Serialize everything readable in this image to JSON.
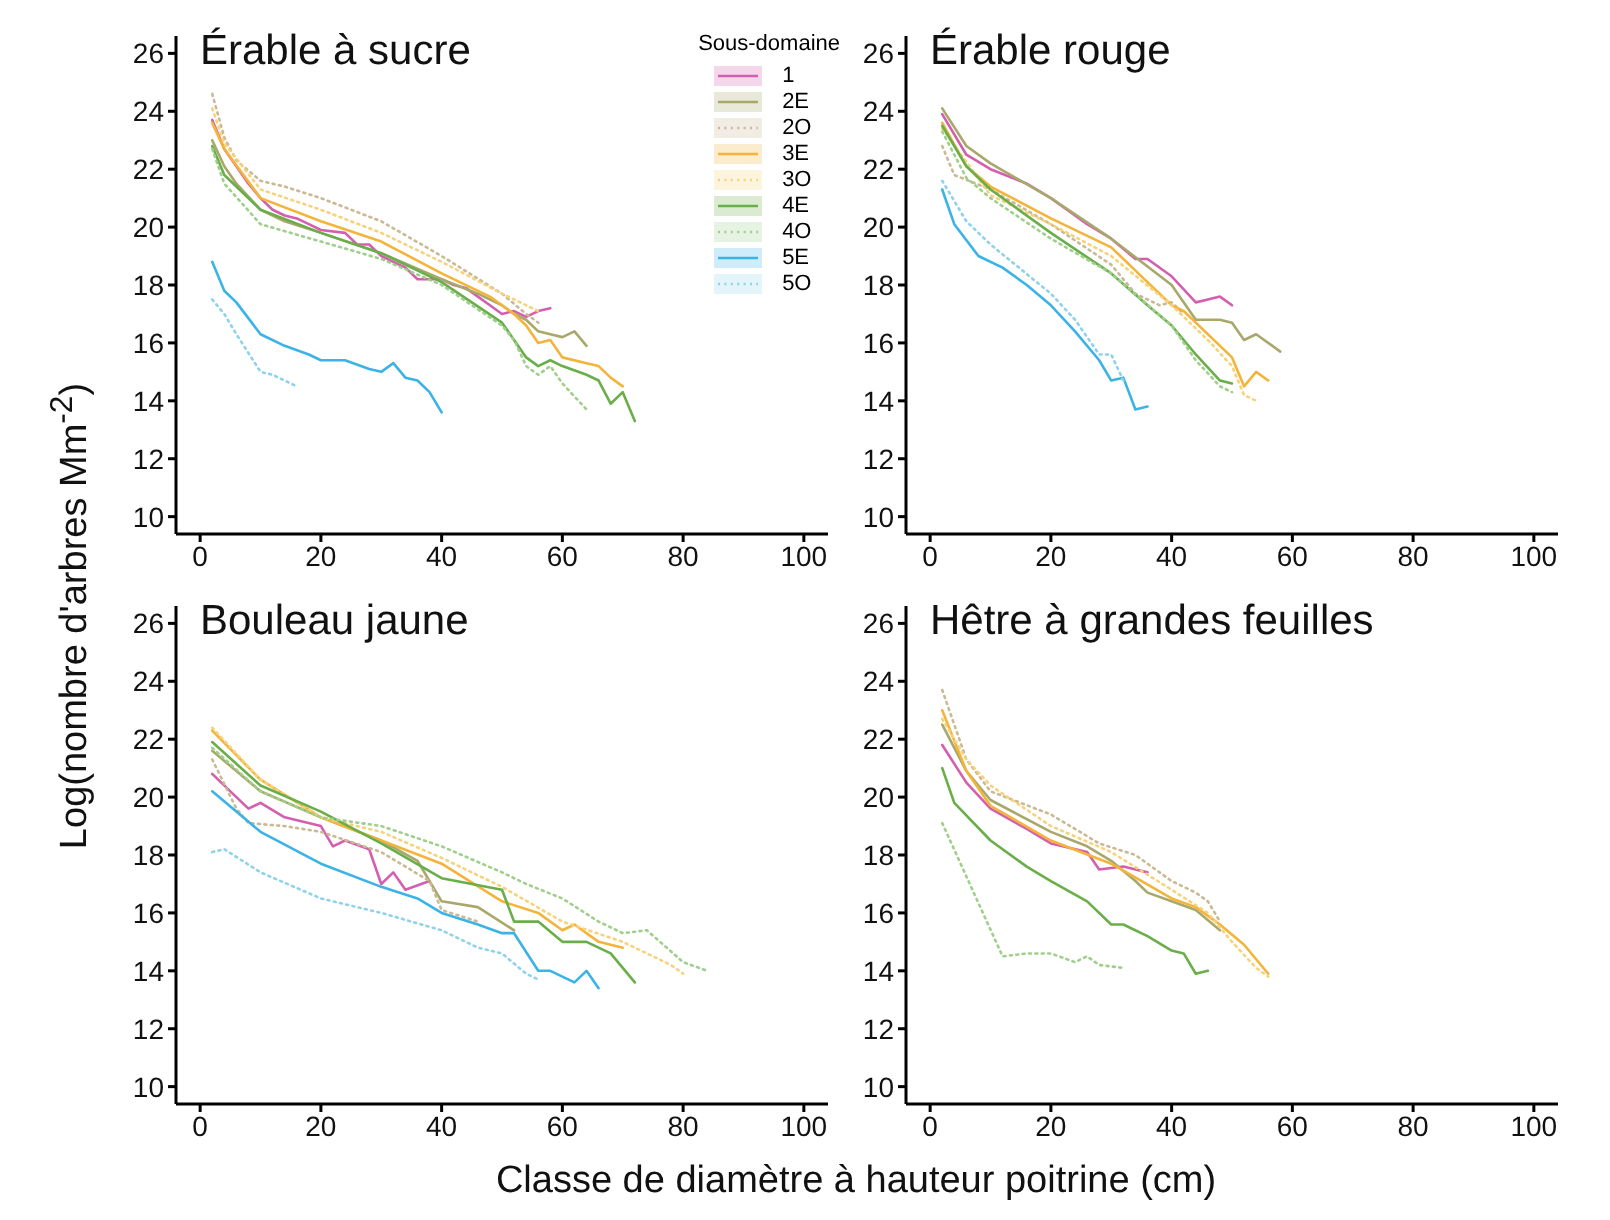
{
  "chart_data": [
    {
      "type": "line",
      "title": "Érable à sucre",
      "ylabel": "Log(nombre d'arbres Mm$^{-2}$)",
      "legend_title": "Sous-domaine",
      "legend": "top right",
      "xlim": [
        -4,
        104
      ],
      "ylim": [
        9.4,
        26.6
      ],
      "xticks": [
        0,
        20,
        40,
        60,
        80,
        100
      ],
      "yticks": [
        10,
        12,
        14,
        16,
        18,
        20,
        22,
        24,
        26
      ],
      "series": [
        {
          "name": "1",
          "color": "#d45fb0",
          "line_style": "solid",
          "x": [
            2,
            4,
            6,
            8,
            10,
            12,
            14,
            16,
            18,
            20,
            24,
            26,
            28,
            30,
            32,
            34,
            36,
            38,
            40,
            42,
            44,
            46,
            48,
            50,
            52,
            54,
            56,
            58
          ],
          "values": [
            23.7,
            22.7,
            22.1,
            21.5,
            21.0,
            20.6,
            20.4,
            20.3,
            20.1,
            19.9,
            19.8,
            19.4,
            19.4,
            19.0,
            18.8,
            18.6,
            18.2,
            18.2,
            18.2,
            18.0,
            17.9,
            17.6,
            17.3,
            17.0,
            17.1,
            16.9,
            17.1,
            17.2
          ]
        },
        {
          "name": "2E",
          "color": "#a9a86b",
          "line_style": "solid",
          "x": [
            2,
            4,
            6,
            10,
            14,
            20,
            30,
            40,
            46,
            50,
            52,
            54,
            56,
            58,
            60,
            62,
            64
          ],
          "values": [
            23.0,
            22.1,
            21.5,
            20.6,
            20.2,
            19.8,
            19.1,
            18.2,
            17.7,
            17.3,
            17.0,
            16.8,
            16.4,
            16.3,
            16.2,
            16.4,
            15.9
          ]
        },
        {
          "name": "2O",
          "color": "#cbb995",
          "line_style": "dotted",
          "x": [
            2,
            4,
            6,
            10,
            14,
            20,
            30,
            40,
            50,
            54,
            56
          ],
          "values": [
            24.6,
            23.1,
            22.3,
            21.6,
            21.4,
            21.0,
            20.2,
            19.0,
            17.7,
            17.0,
            16.7
          ]
        },
        {
          "name": "3E",
          "color": "#f4b43a",
          "line_style": "solid",
          "x": [
            2,
            4,
            10,
            20,
            30,
            40,
            48,
            52,
            54,
            56,
            58,
            60,
            64,
            66,
            68,
            70
          ],
          "values": [
            23.6,
            22.7,
            21.0,
            20.2,
            19.5,
            18.4,
            17.6,
            17.0,
            16.6,
            16.0,
            16.1,
            15.5,
            15.3,
            15.2,
            14.8,
            14.5
          ]
        },
        {
          "name": "3O",
          "color": "#f6d27c",
          "line_style": "dotted",
          "x": [
            2,
            4,
            10,
            20,
            30,
            40,
            50,
            54,
            56
          ],
          "values": [
            24.1,
            22.9,
            21.3,
            20.6,
            19.8,
            18.8,
            17.7,
            17.3,
            17.1
          ]
        },
        {
          "name": "4E",
          "color": "#6aae4a",
          "line_style": "solid",
          "x": [
            2,
            4,
            10,
            20,
            30,
            40,
            50,
            52,
            54,
            56,
            58,
            60,
            64,
            66,
            68,
            70,
            72
          ],
          "values": [
            22.8,
            21.8,
            20.6,
            19.8,
            19.1,
            18.1,
            16.7,
            16.1,
            15.5,
            15.2,
            15.4,
            15.2,
            14.9,
            14.7,
            13.9,
            14.3,
            13.3
          ]
        },
        {
          "name": "4O",
          "color": "#9fcf8a",
          "line_style": "dotted",
          "x": [
            2,
            4,
            10,
            20,
            30,
            40,
            50,
            52,
            54,
            56,
            58,
            60,
            64
          ],
          "values": [
            22.7,
            21.5,
            20.1,
            19.5,
            18.9,
            18.0,
            16.6,
            16.1,
            15.2,
            14.9,
            15.2,
            14.6,
            13.7
          ]
        },
        {
          "name": "5E",
          "color": "#3cb3e6",
          "line_style": "solid",
          "x": [
            2,
            4,
            6,
            10,
            14,
            18,
            20,
            24,
            28,
            30,
            32,
            34,
            36,
            38,
            40
          ],
          "values": [
            18.8,
            17.8,
            17.4,
            16.3,
            15.9,
            15.6,
            15.4,
            15.4,
            15.1,
            15.0,
            15.3,
            14.8,
            14.7,
            14.3,
            13.6
          ]
        },
        {
          "name": "5O",
          "color": "#8fd2ec",
          "line_style": "dotted",
          "x": [
            2,
            4,
            6,
            10,
            12,
            14,
            16
          ],
          "values": [
            17.5,
            17.0,
            16.3,
            15.0,
            14.9,
            14.7,
            14.5
          ]
        }
      ]
    },
    {
      "type": "line",
      "title": "Érable rouge",
      "xlim": [
        -4,
        104
      ],
      "ylim": [
        9.4,
        26.6
      ],
      "xticks": [
        0,
        20,
        40,
        60,
        80,
        100
      ],
      "yticks": [
        10,
        12,
        14,
        16,
        18,
        20,
        22,
        24,
        26
      ],
      "series": [
        {
          "color": "#d45fb0",
          "line_style": "solid",
          "x": [
            2,
            6,
            10,
            16,
            20,
            26,
            30,
            34,
            36,
            40,
            44,
            46,
            48,
            50
          ],
          "values": [
            23.9,
            22.5,
            22.0,
            21.5,
            21.0,
            20.1,
            19.6,
            18.9,
            18.9,
            18.3,
            17.4,
            17.5,
            17.6,
            17.3
          ]
        },
        {
          "color": "#a9a86b",
          "line_style": "solid",
          "x": [
            2,
            6,
            10,
            20,
            30,
            40,
            44,
            48,
            50,
            52,
            54,
            58
          ],
          "values": [
            24.1,
            22.8,
            22.2,
            21.0,
            19.6,
            18.0,
            16.8,
            16.8,
            16.7,
            16.1,
            16.3,
            15.7
          ]
        },
        {
          "color": "#cbb995",
          "line_style": "dotted",
          "x": [
            2,
            4,
            10,
            20,
            30,
            34,
            36,
            38,
            40,
            42
          ],
          "values": [
            22.8,
            21.8,
            21.3,
            20.1,
            18.7,
            17.7,
            17.5,
            17.3,
            17.4,
            17.0
          ]
        },
        {
          "color": "#f4b43a",
          "line_style": "solid",
          "x": [
            2,
            6,
            10,
            20,
            30,
            36,
            40,
            42,
            44,
            50,
            52,
            54,
            56
          ],
          "values": [
            23.6,
            22.1,
            21.4,
            20.3,
            19.3,
            18.1,
            17.3,
            17.1,
            16.7,
            15.5,
            14.5,
            15.0,
            14.7
          ]
        },
        {
          "color": "#f6d27c",
          "line_style": "dotted",
          "x": [
            2,
            10,
            20,
            30,
            40,
            46,
            50,
            52,
            54
          ],
          "values": [
            23.4,
            21.1,
            20.1,
            19.0,
            17.3,
            16.1,
            15.2,
            14.2,
            14.0
          ]
        },
        {
          "color": "#6aae4a",
          "line_style": "solid",
          "x": [
            2,
            6,
            10,
            20,
            30,
            36,
            40,
            44,
            48,
            50
          ],
          "values": [
            23.5,
            22.1,
            21.3,
            19.8,
            18.4,
            17.3,
            16.6,
            15.6,
            14.7,
            14.6
          ]
        },
        {
          "color": "#9fcf8a",
          "line_style": "dotted",
          "x": [
            2,
            6,
            10,
            20,
            30,
            40,
            44,
            48,
            50
          ],
          "values": [
            23.3,
            21.7,
            21.0,
            19.6,
            18.4,
            16.6,
            15.4,
            14.5,
            14.3
          ]
        },
        {
          "color": "#3cb3e6",
          "line_style": "solid",
          "x": [
            2,
            4,
            8,
            12,
            16,
            20,
            24,
            28,
            30,
            32,
            34,
            36
          ],
          "values": [
            21.3,
            20.1,
            19.0,
            18.6,
            18.0,
            17.3,
            16.4,
            15.4,
            14.7,
            14.8,
            13.7,
            13.8
          ]
        },
        {
          "color": "#8fd2ec",
          "line_style": "dotted",
          "x": [
            2,
            6,
            10,
            20,
            24,
            28,
            30,
            32
          ],
          "values": [
            21.6,
            20.2,
            19.4,
            17.7,
            16.8,
            15.6,
            15.6,
            14.7
          ]
        }
      ]
    },
    {
      "type": "line",
      "title": "Bouleau jaune",
      "xlabel": "Classe de diamètre à hauteur poitrine (cm)",
      "xlim": [
        -4,
        104
      ],
      "ylim": [
        9.4,
        26.6
      ],
      "xticks": [
        0,
        20,
        40,
        60,
        80,
        100
      ],
      "yticks": [
        10,
        12,
        14,
        16,
        18,
        20,
        22,
        24,
        26
      ],
      "series": [
        {
          "color": "#d45fb0",
          "line_style": "solid",
          "x": [
            2,
            6,
            8,
            10,
            14,
            20,
            22,
            24,
            28,
            30,
            32,
            34,
            38
          ],
          "values": [
            20.8,
            20.0,
            19.6,
            19.8,
            19.3,
            19.0,
            18.3,
            18.5,
            18.2,
            17.0,
            17.4,
            16.8,
            17.1
          ]
        },
        {
          "color": "#a9a86b",
          "line_style": "solid",
          "x": [
            2,
            10,
            20,
            30,
            36,
            40,
            46,
            52
          ],
          "values": [
            21.6,
            20.2,
            19.3,
            18.5,
            17.8,
            16.4,
            16.2,
            15.4
          ]
        },
        {
          "color": "#cbb995",
          "line_style": "dotted",
          "x": [
            2,
            6,
            8,
            14,
            20,
            30,
            38,
            40,
            46
          ],
          "values": [
            21.3,
            19.6,
            19.1,
            19.0,
            18.8,
            18.1,
            17.1,
            16.1,
            15.7
          ]
        },
        {
          "color": "#f4b43a",
          "line_style": "solid",
          "x": [
            2,
            10,
            20,
            30,
            40,
            50,
            56,
            60,
            62,
            66,
            70
          ],
          "values": [
            22.3,
            20.6,
            19.3,
            18.5,
            17.7,
            16.4,
            16.0,
            15.4,
            15.6,
            15.0,
            14.8
          ]
        },
        {
          "color": "#f6d27c",
          "line_style": "dotted",
          "x": [
            2,
            10,
            20,
            30,
            40,
            50,
            60,
            70,
            74,
            78,
            80
          ],
          "values": [
            22.4,
            20.6,
            19.3,
            18.8,
            17.9,
            16.9,
            15.7,
            15.0,
            14.6,
            14.2,
            13.9
          ]
        },
        {
          "color": "#6aae4a",
          "line_style": "solid",
          "x": [
            2,
            10,
            20,
            30,
            40,
            50,
            52,
            56,
            60,
            64,
            68,
            72
          ],
          "values": [
            21.9,
            20.4,
            19.5,
            18.4,
            17.2,
            16.8,
            15.7,
            15.7,
            15.0,
            15.0,
            14.6,
            13.6
          ]
        },
        {
          "color": "#9fcf8a",
          "line_style": "dotted",
          "x": [
            2,
            10,
            20,
            30,
            40,
            50,
            54,
            60,
            66,
            70,
            74,
            80,
            84
          ],
          "values": [
            21.7,
            20.2,
            19.3,
            19.0,
            18.3,
            17.4,
            17.0,
            16.5,
            15.7,
            15.3,
            15.4,
            14.3,
            14.0
          ]
        },
        {
          "color": "#3cb3e6",
          "line_style": "solid",
          "x": [
            2,
            10,
            20,
            30,
            36,
            40,
            46,
            50,
            52,
            56,
            58,
            62,
            64,
            66
          ],
          "values": [
            20.2,
            18.8,
            17.7,
            16.9,
            16.5,
            16.0,
            15.6,
            15.3,
            15.3,
            14.0,
            14.0,
            13.6,
            14.0,
            13.4
          ]
        },
        {
          "color": "#8fd2ec",
          "line_style": "dotted",
          "x": [
            2,
            4,
            10,
            20,
            30,
            40,
            46,
            50,
            54,
            56
          ],
          "values": [
            18.1,
            18.2,
            17.4,
            16.5,
            16.0,
            15.4,
            14.8,
            14.6,
            13.9,
            13.7
          ]
        }
      ]
    },
    {
      "type": "line",
      "title": "Hêtre à grandes feuilles",
      "xlim": [
        -4,
        104
      ],
      "ylim": [
        9.4,
        26.6
      ],
      "xticks": [
        0,
        20,
        40,
        60,
        80,
        100
      ],
      "yticks": [
        10,
        12,
        14,
        16,
        18,
        20,
        22,
        24,
        26
      ],
      "series": [
        {
          "color": "#d45fb0",
          "line_style": "solid",
          "x": [
            2,
            6,
            10,
            16,
            20,
            26,
            28,
            32,
            36
          ],
          "values": [
            21.8,
            20.5,
            19.6,
            18.9,
            18.4,
            18.1,
            17.5,
            17.6,
            17.4
          ]
        },
        {
          "color": "#a9a86b",
          "line_style": "solid",
          "x": [
            2,
            6,
            10,
            20,
            26,
            30,
            34,
            36,
            40,
            44,
            48
          ],
          "values": [
            22.5,
            20.9,
            19.9,
            18.8,
            18.3,
            17.8,
            17.1,
            16.7,
            16.4,
            16.1,
            15.4
          ]
        },
        {
          "color": "#cbb995",
          "line_style": "dotted",
          "x": [
            2,
            6,
            10,
            20,
            24,
            28,
            34,
            40,
            44,
            46,
            48
          ],
          "values": [
            23.7,
            21.3,
            20.2,
            19.4,
            18.9,
            18.4,
            18.0,
            17.1,
            16.7,
            16.4,
            15.7
          ]
        },
        {
          "color": "#f4b43a",
          "line_style": "solid",
          "x": [
            2,
            6,
            10,
            20,
            30,
            40,
            44,
            48,
            52,
            56
          ],
          "values": [
            23.0,
            20.9,
            19.7,
            18.5,
            17.7,
            16.5,
            16.2,
            15.6,
            14.9,
            13.9
          ]
        },
        {
          "color": "#f6d27c",
          "line_style": "dotted",
          "x": [
            2,
            6,
            10,
            20,
            30,
            40,
            46,
            50,
            54,
            56
          ],
          "values": [
            22.7,
            21.3,
            20.4,
            19.0,
            18.1,
            16.8,
            16.0,
            15.0,
            14.1,
            13.8
          ]
        },
        {
          "color": "#6aae4a",
          "line_style": "solid",
          "x": [
            2,
            4,
            10,
            16,
            20,
            26,
            30,
            32,
            36,
            40,
            42,
            44,
            46
          ],
          "values": [
            21.0,
            19.8,
            18.5,
            17.6,
            17.1,
            16.4,
            15.6,
            15.6,
            15.2,
            14.7,
            14.6,
            13.9,
            14.0
          ]
        },
        {
          "color": "#9fcf8a",
          "line_style": "dotted",
          "x": [
            2,
            12,
            16,
            20,
            24,
            26,
            28,
            32
          ],
          "values": [
            19.1,
            14.5,
            14.6,
            14.6,
            14.3,
            14.5,
            14.2,
            14.1
          ]
        }
      ]
    }
  ]
}
